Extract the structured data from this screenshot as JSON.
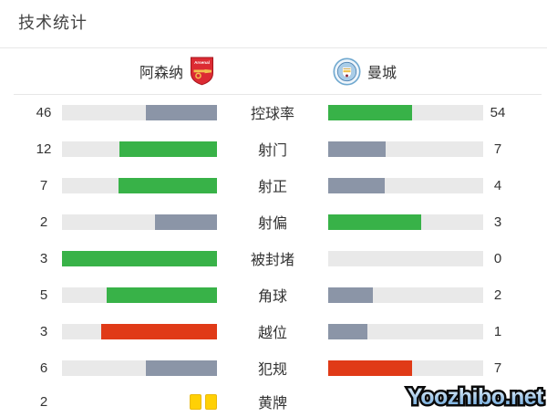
{
  "title": "技术统计",
  "teams": {
    "home": {
      "name": "阿森纳",
      "crest_icon": "arsenal-crest"
    },
    "away": {
      "name": "曼城",
      "crest_icon": "mancity-crest"
    }
  },
  "colors": {
    "green": "#38b248",
    "gray": "#8b95a7",
    "red": "#e03a17",
    "track": "#e9e9e9",
    "yellow_card": "#ffd005",
    "text": "#333333"
  },
  "rows": [
    {
      "label": "控球率",
      "home": 46,
      "away": 54,
      "home_color": "gray",
      "away_color": "green",
      "type": "bar"
    },
    {
      "label": "射门",
      "home": 12,
      "away": 7,
      "home_color": "green",
      "away_color": "gray",
      "type": "bar"
    },
    {
      "label": "射正",
      "home": 7,
      "away": 4,
      "home_color": "green",
      "away_color": "gray",
      "type": "bar"
    },
    {
      "label": "射偏",
      "home": 2,
      "away": 3,
      "home_color": "gray",
      "away_color": "green",
      "type": "bar"
    },
    {
      "label": "被封堵",
      "home": 3,
      "away": 0,
      "home_color": "green",
      "away_color": "gray",
      "type": "bar"
    },
    {
      "label": "角球",
      "home": 5,
      "away": 2,
      "home_color": "green",
      "away_color": "gray",
      "type": "bar"
    },
    {
      "label": "越位",
      "home": 3,
      "away": 1,
      "home_color": "red",
      "away_color": "gray",
      "type": "bar"
    },
    {
      "label": "犯规",
      "home": 6,
      "away": 7,
      "home_color": "gray",
      "away_color": "red",
      "type": "bar"
    },
    {
      "label": "黄牌",
      "home": 2,
      "away": 0,
      "home_color": "yellow",
      "away_color": "yellow",
      "type": "cards"
    }
  ],
  "watermark": "Yoozhibo.net",
  "chart_data": {
    "type": "bar",
    "orientation": "horizontal-paired",
    "title": "技术统计",
    "categories": [
      "控球率",
      "射门",
      "射正",
      "射偏",
      "被封堵",
      "角球",
      "越位",
      "犯规",
      "黄牌"
    ],
    "series": [
      {
        "name": "阿森纳",
        "values": [
          46,
          12,
          7,
          2,
          3,
          5,
          3,
          6,
          2
        ]
      },
      {
        "name": "曼城",
        "values": [
          54,
          7,
          4,
          3,
          0,
          2,
          1,
          7,
          0
        ]
      }
    ],
    "bar_scale": "each bar width = value / (home value + away value)",
    "highlight_rule": "higher value colored green (red for 越位/犯规), lower value gray; 黄牌 shown as yellow card icons"
  }
}
